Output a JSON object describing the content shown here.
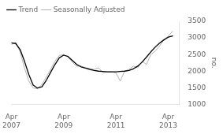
{
  "chart_data": {
    "type": "line",
    "ylabel": "no.",
    "x": [
      0,
      2,
      4,
      6,
      8,
      10,
      12,
      14,
      16,
      18,
      20,
      22,
      24,
      26,
      28,
      30,
      32,
      34,
      36,
      38,
      40,
      42,
      44,
      46,
      48,
      50,
      52,
      54,
      56,
      58,
      60,
      62,
      64,
      66,
      68,
      70,
      72,
      74
    ],
    "series": [
      {
        "name": "Trend",
        "color": "#000000",
        "values": [
          2850,
          2830,
          2650,
          2300,
          1900,
          1580,
          1490,
          1530,
          1720,
          1960,
          2200,
          2400,
          2480,
          2440,
          2320,
          2200,
          2130,
          2090,
          2050,
          2020,
          2000,
          1990,
          1980,
          1980,
          1980,
          1990,
          2000,
          2020,
          2070,
          2150,
          2270,
          2420,
          2580,
          2720,
          2840,
          2940,
          3020,
          3060
        ]
      },
      {
        "name": "Seasonally Adjusted",
        "color": "#aaaaaa",
        "values": [
          2800,
          2870,
          2580,
          2100,
          1700,
          1490,
          1470,
          1600,
          1820,
          2050,
          2300,
          2470,
          2500,
          2430,
          2270,
          2150,
          2150,
          2100,
          2080,
          2050,
          2100,
          1950,
          1980,
          1980,
          1950,
          1700,
          2000,
          2050,
          2150,
          2100,
          2300,
          2200,
          2500,
          2600,
          2750,
          2950,
          3050,
          3200
        ]
      }
    ],
    "xlim": [
      0,
      77
    ],
    "xticks": [
      {
        "value": 0,
        "label": "Apr\n2007"
      },
      {
        "value": 24,
        "label": "Apr\n2009"
      },
      {
        "value": 48,
        "label": "Apr\n2011"
      },
      {
        "value": 72,
        "label": "Apr\n2013"
      }
    ],
    "ylim": [
      1000,
      3500
    ],
    "yticks": [
      1000,
      1500,
      2000,
      2500,
      3000,
      3500
    ],
    "grid": false,
    "legend": "upper left"
  }
}
